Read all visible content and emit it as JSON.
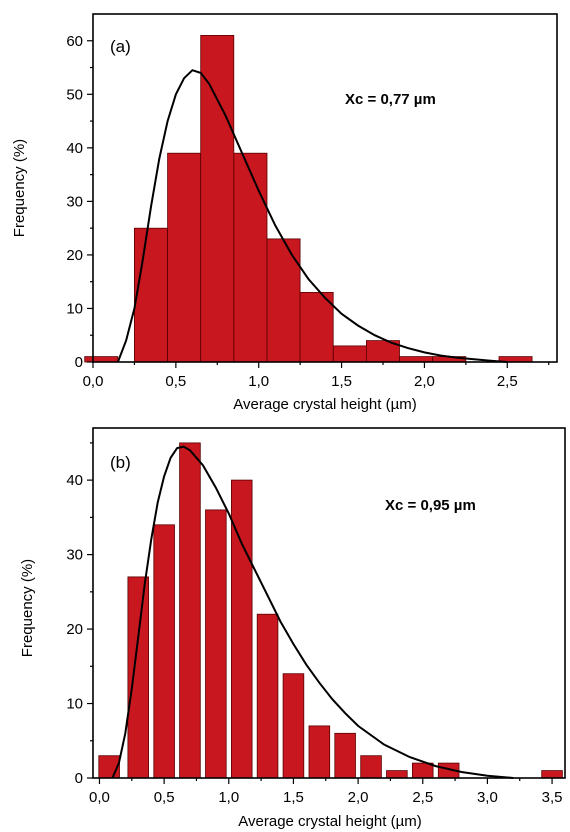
{
  "colors": {
    "bar": "#c8171f",
    "fit_line": "#000000"
  },
  "chart_data": [
    {
      "type": "bar",
      "panel_label": "(a)",
      "annotation": "Xc = 0,77 µm",
      "xlabel": "Average crystal height (µm)",
      "ylabel": "Frequency (%)",
      "xlim": [
        0.0,
        2.8
      ],
      "ylim": [
        0,
        65
      ],
      "x_ticks": [
        0.0,
        0.5,
        1.0,
        1.5,
        2.0,
        2.5
      ],
      "x_tick_labels": [
        "0,0",
        "0,5",
        "1,0",
        "1,5",
        "2,0",
        "2,5"
      ],
      "y_ticks": [
        0,
        10,
        20,
        30,
        40,
        50,
        60
      ],
      "y_tick_labels": [
        "0",
        "10",
        "20",
        "30",
        "40",
        "50",
        "60"
      ],
      "bin_width": 0.2,
      "bins": [
        {
          "x": 0.05,
          "value": 1
        },
        {
          "x": 0.35,
          "value": 25
        },
        {
          "x": 0.55,
          "value": 39
        },
        {
          "x": 0.75,
          "value": 61
        },
        {
          "x": 0.95,
          "value": 39
        },
        {
          "x": 1.15,
          "value": 23
        },
        {
          "x": 1.35,
          "value": 13
        },
        {
          "x": 1.55,
          "value": 3
        },
        {
          "x": 1.75,
          "value": 4
        },
        {
          "x": 1.95,
          "value": 1
        },
        {
          "x": 2.15,
          "value": 1
        },
        {
          "x": 2.55,
          "value": 1
        }
      ],
      "fit_curve": {
        "x": [
          0.15,
          0.2,
          0.25,
          0.3,
          0.35,
          0.4,
          0.45,
          0.5,
          0.55,
          0.6,
          0.65,
          0.7,
          0.8,
          0.9,
          1.0,
          1.1,
          1.2,
          1.3,
          1.4,
          1.5,
          1.6,
          1.7,
          1.8,
          1.9,
          2.0,
          2.1,
          2.2,
          2.3,
          2.4,
          2.5
        ],
        "y": [
          0,
          4,
          10,
          19,
          29,
          38,
          45,
          50,
          53,
          54.5,
          54,
          52,
          46,
          39,
          32,
          25.5,
          20,
          15.5,
          12,
          9,
          6.8,
          5,
          3.6,
          2.6,
          1.8,
          1.2,
          0.8,
          0.5,
          0.25,
          0
        ]
      }
    },
    {
      "type": "bar",
      "panel_label": "(b)",
      "annotation": "Xc = 0,95 µm",
      "xlabel": "Average crystal height (µm)",
      "ylabel": "Frequency (%)",
      "xlim": [
        -0.05,
        3.6
      ],
      "ylim": [
        0,
        47
      ],
      "x_ticks": [
        0.0,
        0.5,
        1.0,
        1.5,
        2.0,
        2.5,
        3.0,
        3.5
      ],
      "x_tick_labels": [
        "0,0",
        "0,5",
        "1,0",
        "1,5",
        "2,0",
        "2,5",
        "3,0",
        "3,5"
      ],
      "y_ticks": [
        0,
        10,
        20,
        30,
        40
      ],
      "y_tick_labels": [
        "0",
        "10",
        "20",
        "30",
        "40"
      ],
      "bin_width": 0.16,
      "bins": [
        {
          "x": 0.075,
          "value": 3
        },
        {
          "x": 0.3,
          "value": 27
        },
        {
          "x": 0.5,
          "value": 34
        },
        {
          "x": 0.7,
          "value": 45
        },
        {
          "x": 0.9,
          "value": 36
        },
        {
          "x": 1.1,
          "value": 40
        },
        {
          "x": 1.3,
          "value": 22
        },
        {
          "x": 1.5,
          "value": 14
        },
        {
          "x": 1.7,
          "value": 7
        },
        {
          "x": 1.9,
          "value": 6
        },
        {
          "x": 2.1,
          "value": 3
        },
        {
          "x": 2.3,
          "value": 1
        },
        {
          "x": 2.5,
          "value": 2
        },
        {
          "x": 2.7,
          "value": 2
        },
        {
          "x": 3.5,
          "value": 1
        }
      ],
      "fit_curve": {
        "x": [
          0.1,
          0.15,
          0.2,
          0.25,
          0.3,
          0.35,
          0.4,
          0.45,
          0.5,
          0.55,
          0.6,
          0.65,
          0.7,
          0.8,
          0.9,
          1.0,
          1.1,
          1.2,
          1.3,
          1.4,
          1.5,
          1.6,
          1.7,
          1.8,
          1.9,
          2.0,
          2.2,
          2.4,
          2.6,
          2.8,
          3.0,
          3.2
        ],
        "y": [
          0,
          2,
          6,
          12,
          19,
          26,
          32,
          37,
          40.5,
          43,
          44.3,
          44.5,
          44,
          42,
          39,
          35.5,
          31.5,
          28,
          24.5,
          21,
          18,
          15.2,
          12.8,
          10.6,
          8.7,
          7,
          4.5,
          2.8,
          1.6,
          0.8,
          0.3,
          0
        ]
      }
    }
  ]
}
